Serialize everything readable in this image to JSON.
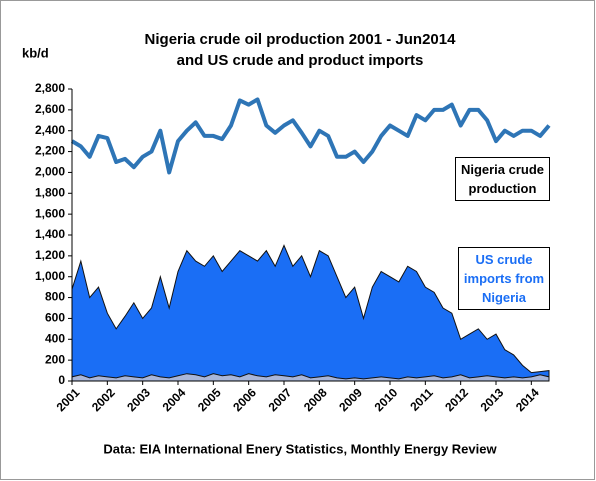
{
  "chart_data": {
    "type": "line_area",
    "title": [
      "Nigeria crude oil production 2001 - Jun2014",
      "and US crude and product imports"
    ],
    "y_label": "kb/d",
    "footnote": "Data: EIA International Enery Statistics, Monthly Energy Review",
    "x": [
      2001,
      2001.25,
      2001.5,
      2001.75,
      2002,
      2002.25,
      2002.5,
      2002.75,
      2003,
      2003.25,
      2003.5,
      2003.75,
      2004,
      2004.25,
      2004.5,
      2004.75,
      2005,
      2005.25,
      2005.5,
      2005.75,
      2006,
      2006.25,
      2006.5,
      2006.75,
      2007,
      2007.25,
      2007.5,
      2007.75,
      2008,
      2008.25,
      2008.5,
      2008.75,
      2009,
      2009.25,
      2009.5,
      2009.75,
      2010,
      2010.25,
      2010.5,
      2010.75,
      2011,
      2011.25,
      2011.5,
      2011.75,
      2012,
      2012.25,
      2012.5,
      2012.75,
      2013,
      2013.25,
      2013.5,
      2013.75,
      2014,
      2014.25,
      2014.5
    ],
    "series": [
      {
        "name": "Nigeria crude production",
        "kind": "line",
        "color": "#2e75b6",
        "values": [
          2300,
          2250,
          2150,
          2350,
          2330,
          2100,
          2130,
          2050,
          2150,
          2200,
          2400,
          2000,
          2300,
          2400,
          2480,
          2350,
          2350,
          2320,
          2450,
          2690,
          2650,
          2700,
          2450,
          2380,
          2450,
          2500,
          2380,
          2250,
          2400,
          2350,
          2150,
          2150,
          2200,
          2100,
          2200,
          2350,
          2450,
          2400,
          2350,
          2550,
          2500,
          2600,
          2600,
          2650,
          2450,
          2600,
          2600,
          2500,
          2300,
          2400,
          2350,
          2400,
          2400,
          2350,
          2450
        ]
      },
      {
        "name": "US crude imports from Nigeria",
        "kind": "area",
        "color": "#1a6ef5",
        "text_color": "#1a6ef5",
        "values": [
          880,
          1150,
          800,
          900,
          650,
          500,
          620,
          750,
          600,
          700,
          1000,
          700,
          1050,
          1250,
          1150,
          1100,
          1200,
          1050,
          1150,
          1250,
          1200,
          1150,
          1250,
          1100,
          1300,
          1100,
          1200,
          1000,
          1250,
          1200,
          1000,
          800,
          900,
          600,
          900,
          1050,
          1000,
          950,
          1100,
          1050,
          900,
          850,
          700,
          650,
          400,
          450,
          500,
          400,
          450,
          300,
          250,
          150,
          80,
          90,
          100
        ]
      },
      {
        "kind": "area",
        "color": "#a9b6d8",
        "values": [
          40,
          60,
          30,
          50,
          40,
          30,
          50,
          40,
          30,
          60,
          40,
          30,
          50,
          70,
          60,
          40,
          70,
          50,
          60,
          40,
          70,
          50,
          40,
          60,
          50,
          40,
          60,
          30,
          40,
          50,
          30,
          20,
          30,
          20,
          30,
          40,
          30,
          20,
          40,
          30,
          40,
          50,
          30,
          40,
          60,
          30,
          40,
          50,
          40,
          30,
          40,
          30,
          40,
          60,
          40
        ]
      }
    ],
    "xlim": [
      2001,
      2014.5
    ],
    "xticks": [
      2001,
      2002,
      2003,
      2004,
      2005,
      2006,
      2007,
      2008,
      2009,
      2010,
      2011,
      2012,
      2013,
      2014
    ],
    "ylim": [
      0,
      2800
    ],
    "yticks": [
      0,
      200,
      400,
      600,
      800,
      {
        "value": 1000,
        "label": "1,000"
      },
      {
        "value": 1200,
        "label": "1,200"
      },
      {
        "value": 1400,
        "label": "1,400"
      },
      {
        "value": 1600,
        "label": "1,600"
      },
      {
        "value": 1800,
        "label": "1,800"
      },
      {
        "value": 2000,
        "label": "2,000"
      },
      {
        "value": 2200,
        "label": "2,200"
      },
      {
        "value": 2400,
        "label": "2,400"
      },
      {
        "value": 2600,
        "label": "2,600"
      },
      {
        "value": 2800,
        "label": "2,800"
      }
    ],
    "grid": false
  }
}
